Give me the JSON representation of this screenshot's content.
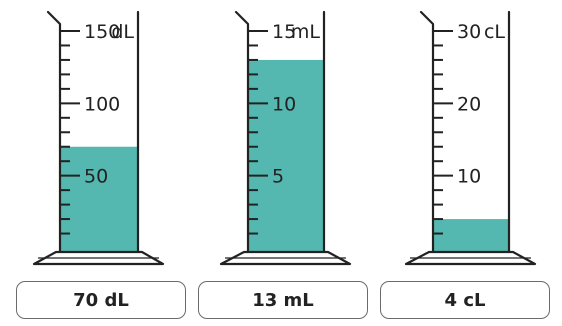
{
  "colors": {
    "liquid": "#55b8b0",
    "outline": "#222222",
    "box_border": "#6b6b6b"
  },
  "cylinders": [
    {
      "unit": "dL",
      "max": 150,
      "level": 70,
      "labeled_ticks": [
        50,
        100,
        150
      ],
      "minor_step": 10,
      "tick_labels": [
        "50",
        "100",
        "150"
      ],
      "answer": "70 dL"
    },
    {
      "unit": "mL",
      "max": 15,
      "level": 13,
      "labeled_ticks": [
        5,
        10,
        15
      ],
      "minor_step": 1,
      "tick_labels": [
        "5",
        "10",
        "15"
      ],
      "answer": "13 mL"
    },
    {
      "unit": "cL",
      "max": 30,
      "level": 4,
      "labeled_ticks": [
        10,
        20,
        30
      ],
      "minor_step": 2,
      "tick_labels": [
        "10",
        "20",
        "30"
      ],
      "answer": "4 cL"
    }
  ]
}
